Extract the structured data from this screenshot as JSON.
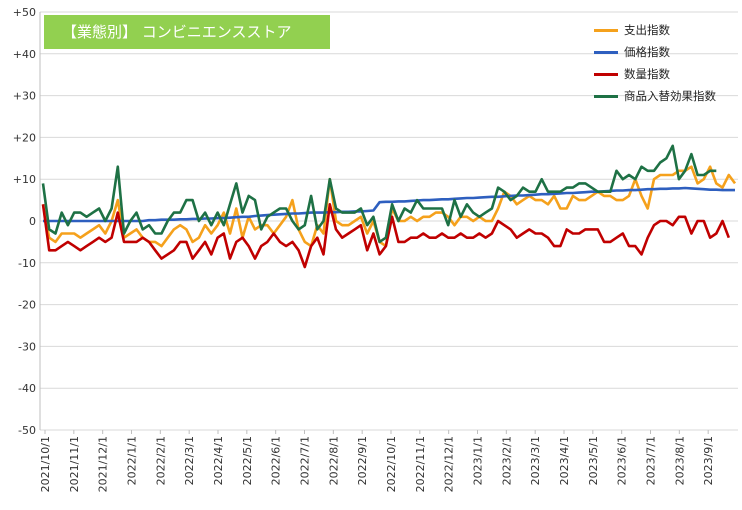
{
  "title": "【業態別】 コンビニエンスストア",
  "chart_data": {
    "type": "line",
    "ylim": [
      -50,
      50
    ],
    "yticks": [
      "+50",
      "+40",
      "+30",
      "+20",
      "+10",
      "0",
      "-10",
      "-20",
      "-30",
      "-40",
      "-50"
    ],
    "ytick_values": [
      50,
      40,
      30,
      20,
      10,
      0,
      -10,
      -20,
      -30,
      -40,
      -50
    ],
    "xtick_labels": [
      "2021/10/1",
      "2021/11/1",
      "2021/12/1",
      "2022/1/1",
      "2022/2/1",
      "2022/3/1",
      "2022/4/1",
      "2022/5/1",
      "2022/6/1",
      "2022/7/1",
      "2022/8/1",
      "2022/9/1",
      "2022/10/1",
      "2022/11/1",
      "2022/12/1",
      "2023/1/1",
      "2023/2/1",
      "2023/3/1",
      "2023/4/1",
      "2023/5/1",
      "2023/6/1",
      "2023/7/1",
      "2023/8/1",
      "2023/9/1"
    ],
    "legend_position": "top-right",
    "grid": "horizontal",
    "series": [
      {
        "name": "支出指数",
        "color": "#f5a11c",
        "values": [
          4,
          -4,
          -5,
          -3,
          -3,
          -3,
          -4,
          -3,
          -2,
          -1,
          -3,
          0,
          5,
          -4,
          -3,
          -2,
          -4,
          -5,
          -5,
          -6,
          -4,
          -2,
          -1,
          -2,
          -5,
          -4,
          -1,
          -3,
          -1,
          2,
          -3,
          3,
          -4,
          1,
          -2,
          -1,
          -1,
          -3,
          -1,
          1,
          5,
          -2,
          -5,
          -6,
          -1,
          -3,
          10,
          0,
          -1,
          -1,
          0,
          1,
          -3,
          0,
          -5,
          -6,
          3,
          0,
          0,
          1,
          0,
          1,
          1,
          2,
          2,
          1,
          -1,
          1,
          1,
          0,
          1,
          0,
          0,
          3,
          7,
          6,
          4,
          5,
          6,
          5,
          5,
          4,
          6,
          3,
          3,
          6,
          5,
          5,
          6,
          7,
          6,
          6,
          5,
          5,
          6,
          10,
          6,
          3,
          10,
          11,
          11,
          11,
          12,
          12,
          13,
          9,
          10,
          13,
          9,
          8,
          11,
          9
        ]
      },
      {
        "name": "価格指数",
        "color": "#2e5fbf",
        "values": [
          0,
          0,
          0,
          0,
          0,
          0,
          0,
          0,
          0,
          0,
          0,
          0,
          0,
          0,
          0,
          0,
          0,
          0.2,
          0.2,
          0.3,
          0.3,
          0.3,
          0.4,
          0.4,
          0.5,
          0.5,
          0.6,
          0.6,
          0.7,
          0.7,
          0.8,
          0.9,
          1,
          1,
          1.2,
          1.3,
          1.4,
          1.5,
          1.6,
          1.7,
          1.8,
          1.8,
          1.9,
          2,
          2,
          2,
          2.1,
          2.1,
          2.2,
          2.2,
          2.3,
          2.3,
          2.4,
          2.5,
          4.5,
          4.6,
          4.6,
          4.7,
          4.7,
          4.8,
          4.9,
          5,
          5,
          5.1,
          5.2,
          5.2,
          5.3,
          5.4,
          5.5,
          5.5,
          5.6,
          5.7,
          5.8,
          5.8,
          5.9,
          6,
          6.1,
          6.1,
          6.2,
          6.3,
          6.4,
          6.4,
          6.5,
          6.6,
          6.7,
          6.7,
          6.8,
          6.9,
          7,
          7,
          7.1,
          7.2,
          7.3,
          7.3,
          7.4,
          7.4,
          7.5,
          7.6,
          7.6,
          7.7,
          7.7,
          7.8,
          7.8,
          7.9,
          7.8,
          7.7,
          7.6,
          7.5,
          7.5,
          7.4,
          7.4,
          7.4
        ]
      },
      {
        "name": "数量指数",
        "color": "#c00000",
        "values": [
          4,
          -7,
          -7,
          -6,
          -5,
          -6,
          -7,
          -6,
          -5,
          -4,
          -5,
          -4,
          2,
          -5,
          -5,
          -5,
          -4,
          -5,
          -7,
          -9,
          -8,
          -7,
          -5,
          -5,
          -9,
          -7,
          -5,
          -8,
          -4,
          -3,
          -9,
          -5,
          -4,
          -6,
          -9,
          -6,
          -5,
          -3,
          -5,
          -6,
          -5,
          -7,
          -11,
          -6,
          -4,
          -8,
          4,
          -2,
          -4,
          -3,
          -2,
          -1,
          -7,
          -3,
          -8,
          -6,
          1,
          -5,
          -5,
          -4,
          -4,
          -3,
          -4,
          -4,
          -3,
          -4,
          -4,
          -3,
          -4,
          -4,
          -3,
          -4,
          -3,
          0,
          -1,
          -2,
          -4,
          -3,
          -2,
          -3,
          -3,
          -4,
          -6,
          -6,
          -2,
          -3,
          -3,
          -2,
          -2,
          -2,
          -5,
          -5,
          -4,
          -3,
          -6,
          -6,
          -8,
          -4,
          -1,
          0,
          0,
          -1,
          1,
          1,
          -3,
          0,
          0,
          -4,
          -3,
          0,
          -4
        ]
      },
      {
        "name": "商品入替効果指数",
        "color": "#1e7145",
        "values": [
          9,
          -2,
          -3,
          2,
          -1,
          2,
          2,
          1,
          2,
          3,
          0,
          3,
          13,
          -3,
          0,
          2,
          -2,
          -1,
          -3,
          -3,
          0,
          2,
          2,
          5,
          5,
          0,
          2,
          -1,
          2,
          -1,
          4,
          9,
          2,
          6,
          5,
          -2,
          1,
          2,
          3,
          3,
          0,
          -2,
          -1,
          6,
          -2,
          0,
          10,
          3,
          2,
          2,
          2,
          3,
          -1,
          1,
          -5,
          -4,
          4,
          0,
          3,
          2,
          5,
          3,
          3,
          3,
          3,
          -1,
          5,
          1,
          4,
          2,
          1,
          2,
          3,
          8,
          7,
          5,
          6,
          8,
          7,
          7,
          10,
          7,
          7,
          7,
          8,
          8,
          9,
          9,
          8,
          7,
          7,
          7,
          12,
          10,
          11,
          10,
          13,
          12,
          12,
          14,
          15,
          18,
          10,
          12,
          16,
          11,
          11,
          12,
          12
        ]
      }
    ]
  }
}
